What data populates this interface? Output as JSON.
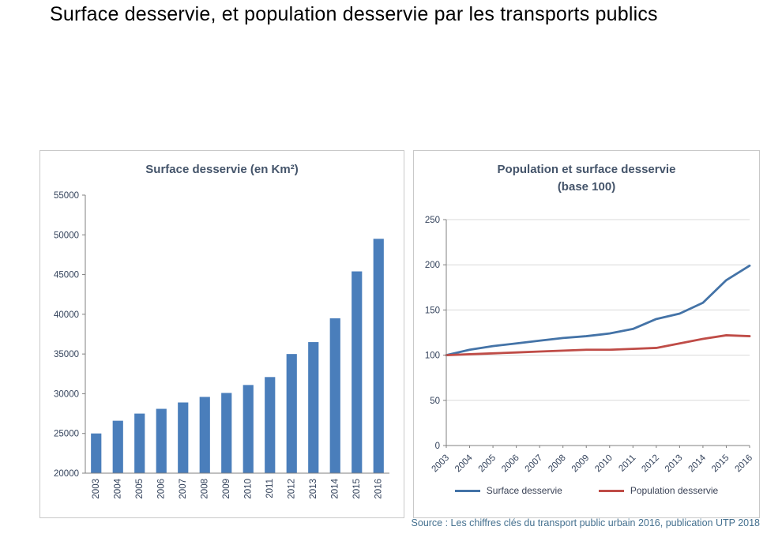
{
  "page": {
    "title": "Surface desservie, et population desservie par les transports publics",
    "source": "Source : Les chiffres clés du transport public urbain 2016, publication UTP 2018"
  },
  "colors": {
    "bar_blue": "#4a7ebb",
    "line_blue": "#4473a7",
    "line_red": "#bf4c47",
    "axis_line": "#808080",
    "grid_line": "#d9d9d9",
    "tick_text": "#33425b",
    "title_text": "#44546a",
    "panel_border": "#c9c9c9",
    "source_text": "#44708f"
  },
  "chart_data": [
    {
      "type": "bar",
      "title": "Surface desservie (en Km²)",
      "categories": [
        "2003",
        "2004",
        "2005",
        "2006",
        "2007",
        "2008",
        "2009",
        "2010",
        "2011",
        "2012",
        "2013",
        "2014",
        "2015",
        "2016"
      ],
      "values": [
        25000,
        26600,
        27500,
        28100,
        28900,
        29600,
        30100,
        31100,
        32100,
        35000,
        36500,
        39500,
        45400,
        49500
      ],
      "xlabel": "",
      "ylabel": "",
      "ylim": [
        20000,
        55000
      ],
      "ytick_step": 5000,
      "grid": false,
      "bar_color": "#4a7ebb",
      "legend_position": "none"
    },
    {
      "type": "line",
      "title": "Population et surface desservie",
      "subtitle": "(base 100)",
      "categories": [
        "2003",
        "2004",
        "2005",
        "2006",
        "2007",
        "2008",
        "2009",
        "2010",
        "2011",
        "2012",
        "2013",
        "2014",
        "2015",
        "2016"
      ],
      "series": [
        {
          "name": "Surface desservie",
          "color": "#4473a7",
          "values": [
            100,
            106,
            110,
            113,
            116,
            119,
            121,
            124,
            129,
            140,
            146,
            158,
            183,
            199
          ]
        },
        {
          "name": "Population desservie",
          "color": "#bf4c47",
          "values": [
            100,
            101,
            102,
            103,
            104,
            105,
            106,
            106,
            107,
            108,
            113,
            118,
            122,
            121
          ]
        }
      ],
      "xlabel": "",
      "ylabel": "",
      "ylim": [
        0,
        250
      ],
      "ytick_step": 50,
      "grid": true,
      "legend_position": "bottom"
    }
  ]
}
